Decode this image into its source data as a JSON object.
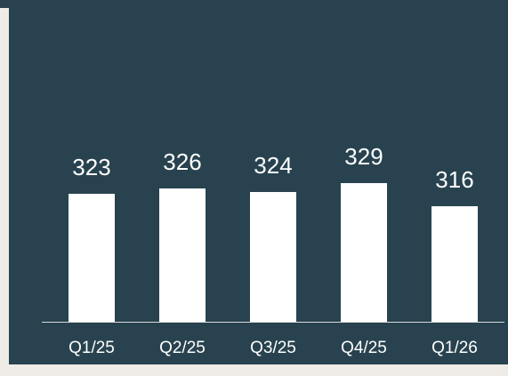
{
  "chart_data": {
    "type": "bar",
    "categories": [
      "Q1/25",
      "Q2/25",
      "Q3/25",
      "Q4/25",
      "Q1/26"
    ],
    "values": [
      323,
      326,
      324,
      329,
      316
    ],
    "color": "#ffffff",
    "ylim": [
      251,
      421
    ]
  }
}
